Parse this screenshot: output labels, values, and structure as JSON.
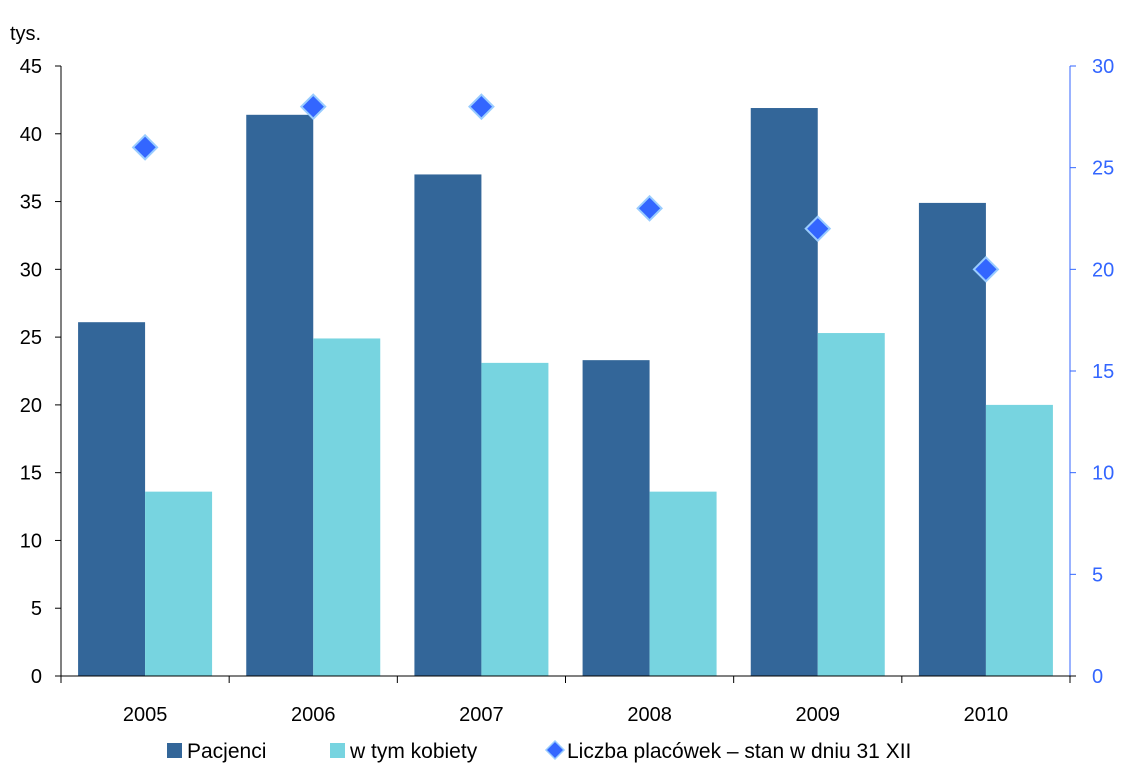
{
  "chart_data": {
    "type": "bar",
    "unit_label": "tys.",
    "categories": [
      "2005",
      "2006",
      "2007",
      "2008",
      "2009",
      "2010"
    ],
    "series": [
      {
        "name": "Pacjenci",
        "type": "bar",
        "axis": "left",
        "values": [
          26.1,
          41.4,
          37.0,
          23.3,
          41.9,
          34.9
        ]
      },
      {
        "name": "w tym kobiety",
        "type": "bar",
        "axis": "left",
        "values": [
          13.6,
          24.9,
          23.1,
          13.6,
          25.3,
          20.0
        ]
      },
      {
        "name": "Liczba placówek – stan w dniu 31 XII",
        "type": "scatter",
        "axis": "right",
        "values": [
          26,
          28,
          28,
          23,
          22,
          20
        ]
      }
    ],
    "y_left": {
      "ticks": [
        "0",
        "5",
        "10",
        "15",
        "20",
        "25",
        "30",
        "35",
        "40",
        "45"
      ],
      "range": [
        0,
        45
      ]
    },
    "y_right": {
      "ticks": [
        "0",
        "5",
        "10",
        "15",
        "20",
        "25",
        "30"
      ],
      "range": [
        0,
        30
      ]
    },
    "legend_position": "bottom",
    "grid": false,
    "colors": {
      "pacjenci": "#336699",
      "kobiety": "#77D4E0",
      "placowki": "#3366FF",
      "placowki_outline": "#99CCFF",
      "right_axis": "#3366FF",
      "left_axis": "#000000"
    }
  }
}
